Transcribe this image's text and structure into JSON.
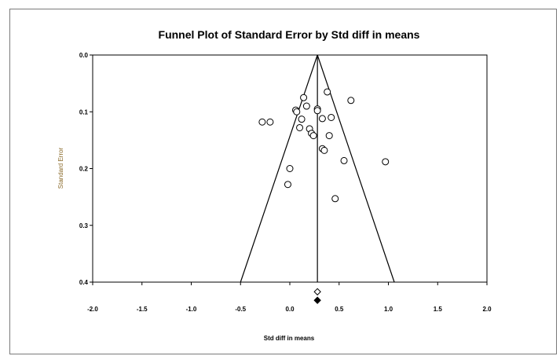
{
  "chart_data": {
    "type": "scatter",
    "title": "Funnel Plot of Standard Error by Std diff in means",
    "xlabel": "Std diff in means",
    "ylabel": "Standard Error",
    "xlim": [
      -2.0,
      2.0
    ],
    "ylim": [
      0.0,
      0.4
    ],
    "y_inverted": true,
    "x_ticks": [
      "-2.0",
      "-1.5",
      "-1.0",
      "-0.5",
      "0.0",
      "0.5",
      "1.0",
      "1.5",
      "2.0"
    ],
    "y_ticks": [
      "0.0",
      "0.1",
      "0.2",
      "0.3",
      "0.4"
    ],
    "grid": false,
    "pooled_estimate": 0.28,
    "funnel": {
      "apex": [
        0.28,
        0.0
      ],
      "base_left": [
        -0.5,
        0.4
      ],
      "base_right": [
        1.06,
        0.4
      ]
    },
    "studies": [
      {
        "x": -0.28,
        "y": 0.118
      },
      {
        "x": -0.2,
        "y": 0.118
      },
      {
        "x": 0.0,
        "y": 0.2
      },
      {
        "x": -0.02,
        "y": 0.228
      },
      {
        "x": 0.06,
        "y": 0.097
      },
      {
        "x": 0.07,
        "y": 0.1
      },
      {
        "x": 0.1,
        "y": 0.128
      },
      {
        "x": 0.12,
        "y": 0.113
      },
      {
        "x": 0.14,
        "y": 0.075
      },
      {
        "x": 0.17,
        "y": 0.09
      },
      {
        "x": 0.2,
        "y": 0.13
      },
      {
        "x": 0.22,
        "y": 0.138
      },
      {
        "x": 0.24,
        "y": 0.142
      },
      {
        "x": 0.28,
        "y": 0.095
      },
      {
        "x": 0.28,
        "y": 0.098
      },
      {
        "x": 0.33,
        "y": 0.112
      },
      {
        "x": 0.33,
        "y": 0.165
      },
      {
        "x": 0.35,
        "y": 0.168
      },
      {
        "x": 0.38,
        "y": 0.065
      },
      {
        "x": 0.4,
        "y": 0.142
      },
      {
        "x": 0.42,
        "y": 0.11
      },
      {
        "x": 0.46,
        "y": 0.253
      },
      {
        "x": 0.55,
        "y": 0.186
      },
      {
        "x": 0.62,
        "y": 0.08
      },
      {
        "x": 0.97,
        "y": 0.188
      }
    ],
    "summary_markers": [
      {
        "x": 0.28,
        "y": 0.417,
        "shape": "diamond",
        "fill": "open"
      },
      {
        "x": 0.28,
        "y": 0.432,
        "shape": "diamond",
        "fill": "filled"
      }
    ]
  }
}
